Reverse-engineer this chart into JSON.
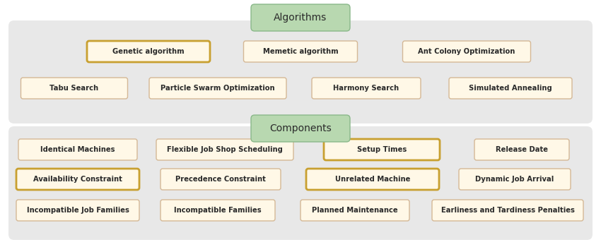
{
  "algorithms_title": "Algorithms",
  "components_title": "Components",
  "algo_row1": [
    "Genetic algorithm",
    "Memetic algorithm",
    "Ant Colony Optimization"
  ],
  "algo_row2": [
    "Tabu Search",
    "Particle Swarm Optimization",
    "Harmony Search",
    "Simulated Annealing"
  ],
  "algo_highlighted": [
    "Genetic algorithm"
  ],
  "comp_row1": [
    "Identical Machines",
    "Flexible Job Shop Scheduling",
    "Setup Times",
    "Release Date"
  ],
  "comp_row2": [
    "Availability Constraint",
    "Precedence Constraint",
    "Unrelated Machine",
    "Dynamic Job Arrival"
  ],
  "comp_row3": [
    "Incompatible Job Families",
    "Incompatible Families",
    "Planned Maintenance",
    "Earliness and Tardiness Penalties"
  ],
  "comp_highlighted": [
    "Setup Times",
    "Availability Constraint",
    "Unrelated Machine"
  ],
  "box_fill": "#fff8e7",
  "box_edge_normal": "#d4b896",
  "box_edge_highlight": "#c8a030",
  "title_box_fill": "#b8d8b0",
  "title_box_edge": "#8ab88a",
  "section_bg": "#e8e8e8",
  "text_color": "#2a2a2a",
  "title_fontsize": 10,
  "label_fontsize": 7.2
}
